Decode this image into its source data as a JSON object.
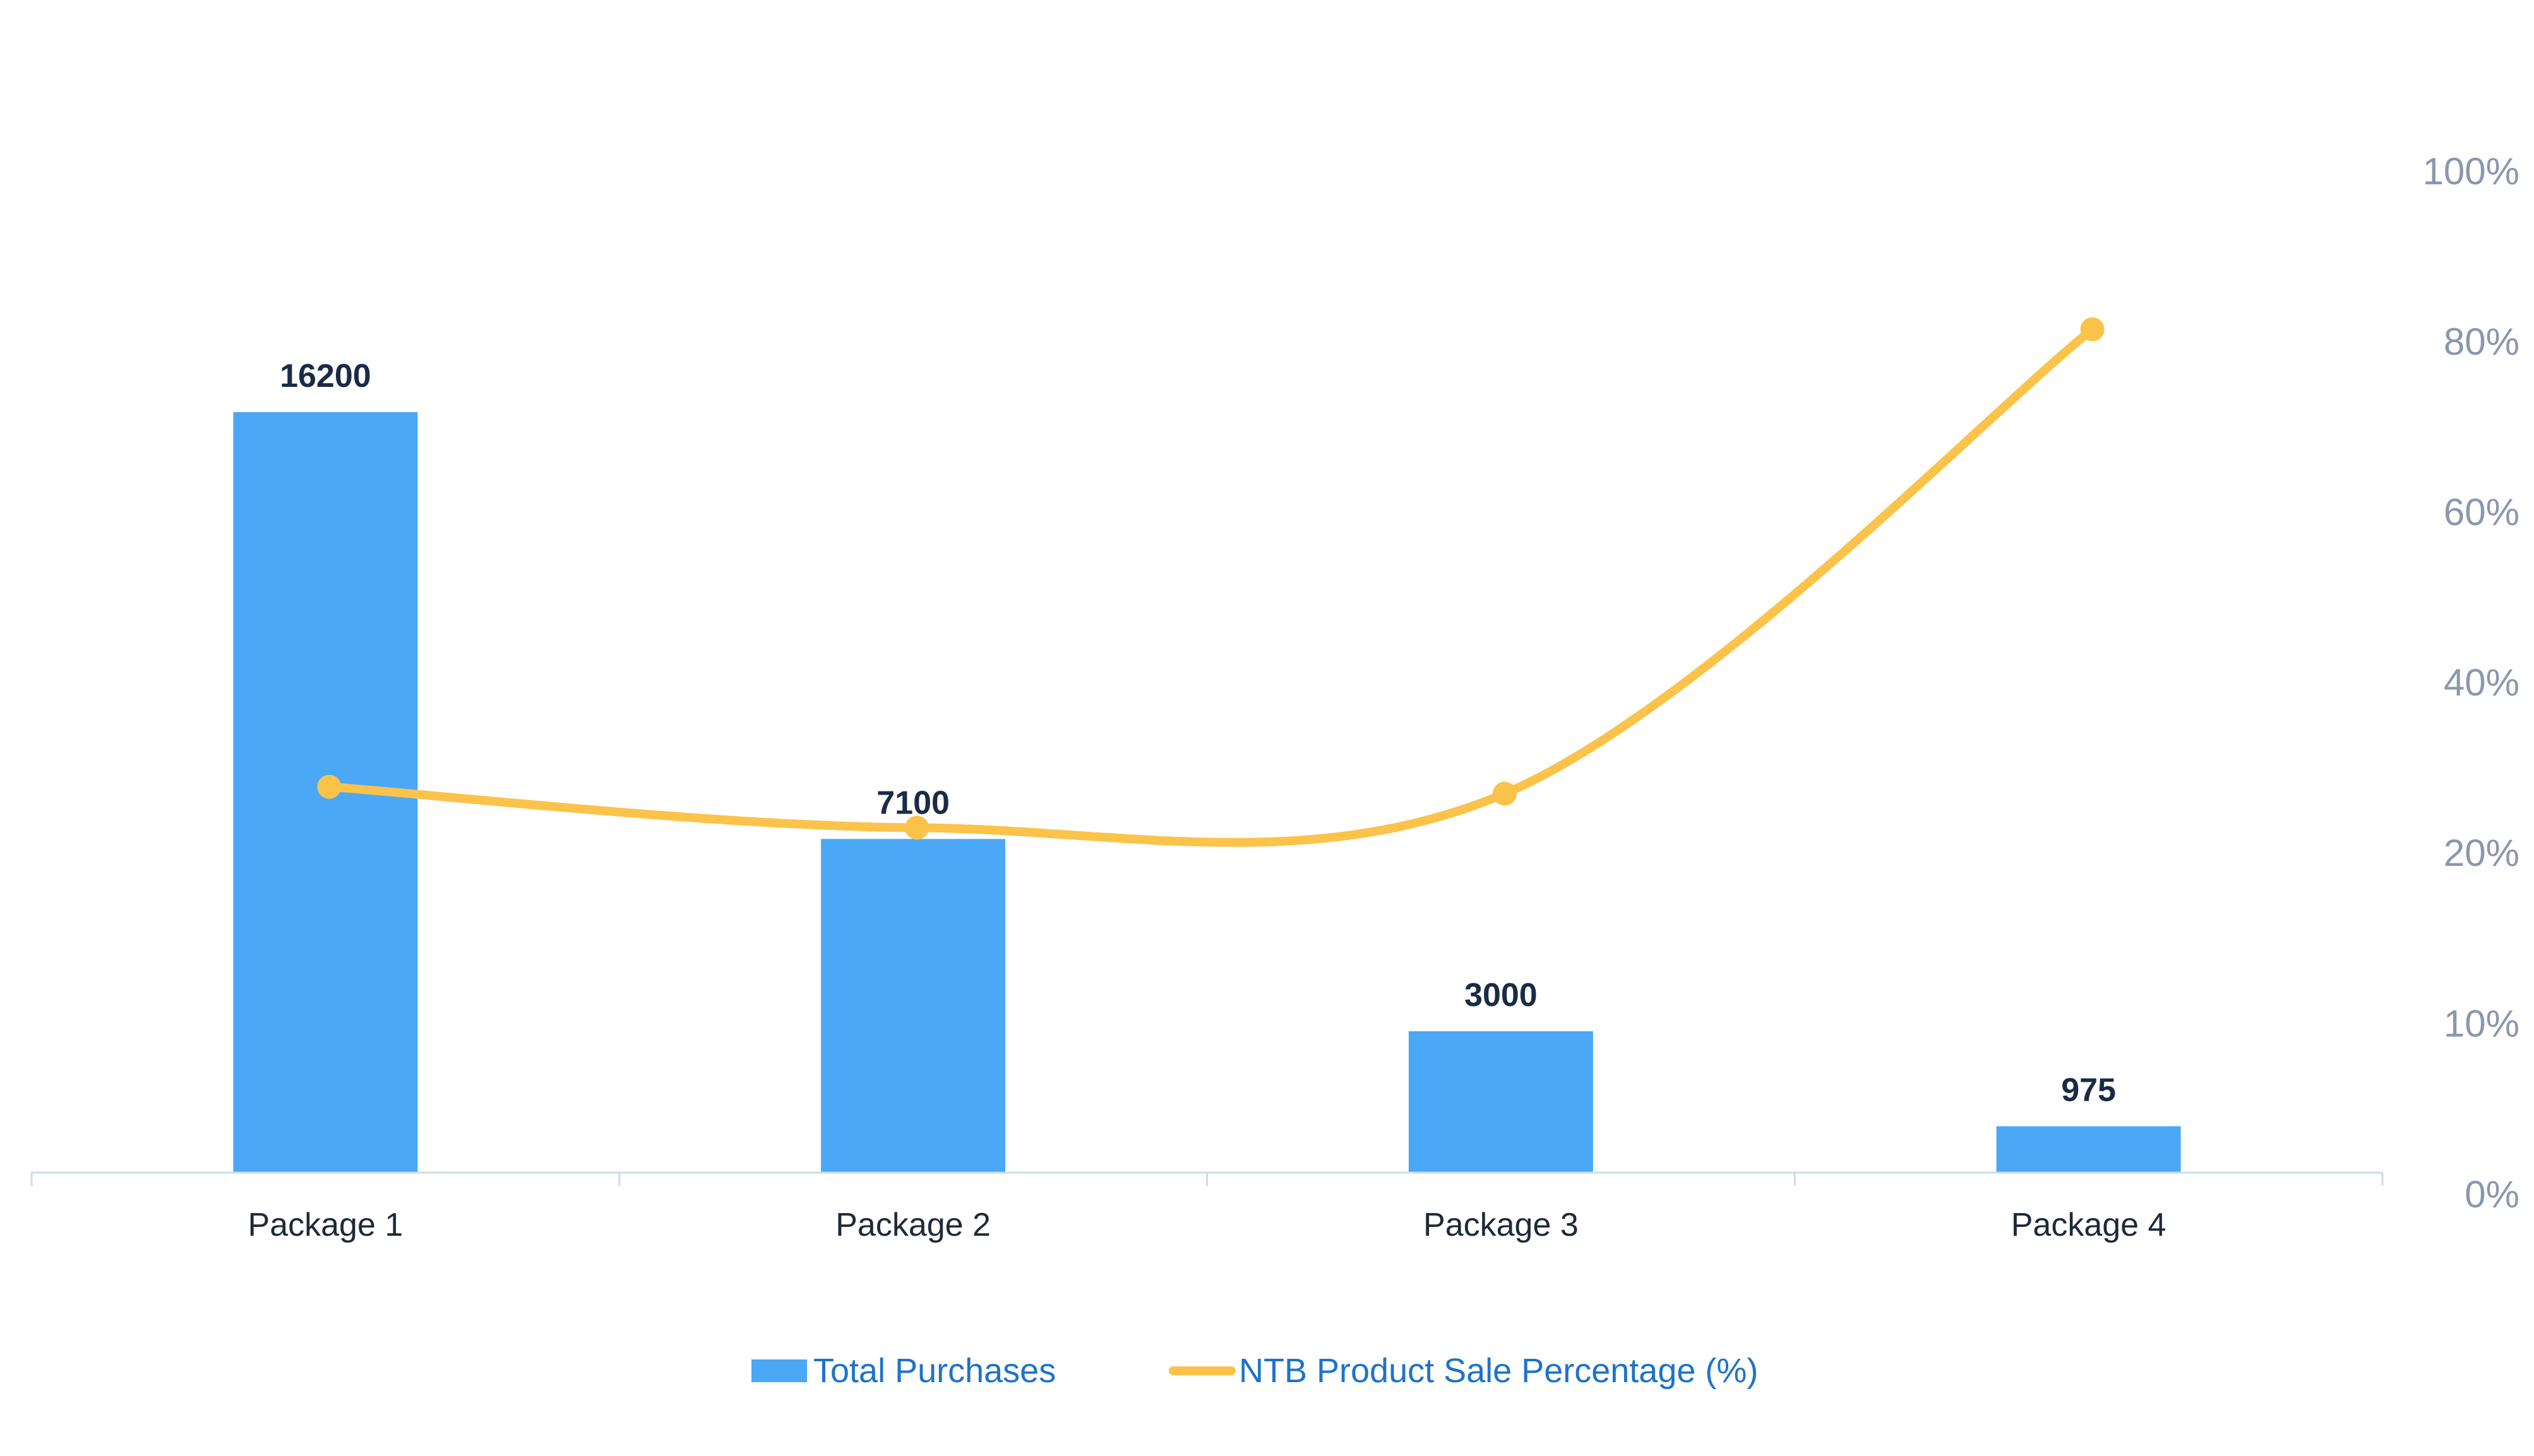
{
  "chart_data": {
    "type": "bar+line",
    "categories": [
      "Package 1",
      "Package 2",
      "Package 3",
      "Package 4"
    ],
    "series": [
      {
        "name": "Total Purchases",
        "type": "bar",
        "axis": "left",
        "values": [
          16200,
          7100,
          3000,
          975
        ],
        "color": "#4BA8F7"
      },
      {
        "name": "NTB Product Sale Percentage (%)",
        "type": "line",
        "axis": "right",
        "smooth": true,
        "values": [
          27.8,
          23,
          27,
          81.5
        ],
        "color": "#FBC34A"
      }
    ],
    "y_left": {
      "range": [
        0,
        16200
      ],
      "visible": false
    },
    "y_right": {
      "range": [
        0,
        100
      ],
      "tick_labels": [
        "0%",
        "10%",
        "20%",
        "40%",
        "60%",
        "80%",
        "100%"
      ],
      "tick_values": [
        0,
        10,
        20,
        40,
        60,
        80,
        100
      ],
      "scale": "piecewise (0–20 same spacing as 20–40)"
    },
    "grid": false,
    "legend": {
      "position": "bottom-center",
      "entries": [
        "Total Purchases",
        "NTB Product Sale Percentage (%)"
      ]
    },
    "colors": {
      "value_label": "#1A2B45",
      "x_tick": "#1F2937",
      "y_tick": "#8A97AD",
      "legend_text": "#1E73C8",
      "axis_line": "#C9DDF0"
    }
  }
}
